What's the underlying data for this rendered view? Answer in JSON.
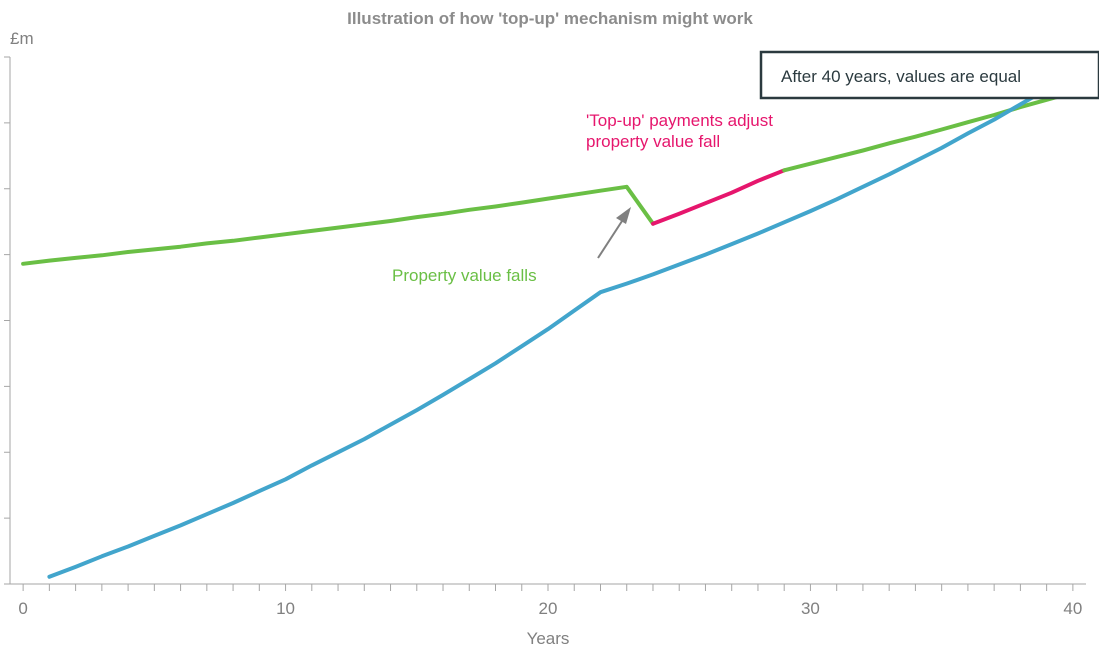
{
  "chart_data": {
    "type": "line",
    "title": "Illustration of how 'top-up' mechanism might work",
    "y_unit_label": "£m",
    "xlabel": "Years",
    "ylabel": "",
    "xlim": [
      -0.5,
      40.5
    ],
    "ylim": [
      0,
      8
    ],
    "x_tick_labels": [
      "0",
      "10",
      "20",
      "30",
      "40"
    ],
    "x_tick_values": [
      0,
      10,
      20,
      30,
      40
    ],
    "grid": false,
    "series": [
      {
        "color": "#6abf45",
        "points": [
          [
            0,
            4.86
          ],
          [
            1,
            4.91
          ],
          [
            2,
            4.95
          ],
          [
            3,
            4.99
          ],
          [
            4,
            5.04
          ],
          [
            5,
            5.08
          ],
          [
            6,
            5.12
          ],
          [
            7,
            5.17
          ],
          [
            8,
            5.21
          ],
          [
            9,
            5.26
          ],
          [
            10,
            5.31
          ],
          [
            11,
            5.36
          ],
          [
            12,
            5.41
          ],
          [
            13,
            5.46
          ],
          [
            14,
            5.51
          ],
          [
            15,
            5.57
          ],
          [
            16,
            5.62
          ],
          [
            17,
            5.68
          ],
          [
            18,
            5.73
          ],
          [
            19,
            5.79
          ],
          [
            20,
            5.85
          ],
          [
            21,
            5.91
          ],
          [
            22,
            5.97
          ],
          [
            23,
            6.03
          ],
          [
            24,
            5.47
          ]
        ]
      },
      {
        "color": "#e6166d",
        "points": [
          [
            24,
            5.47
          ],
          [
            25,
            5.62
          ],
          [
            26,
            5.78
          ],
          [
            27,
            5.94
          ],
          [
            28,
            6.12
          ],
          [
            29,
            6.28
          ]
        ]
      },
      {
        "color": "#6abf45",
        "points": [
          [
            29,
            6.28
          ],
          [
            30,
            6.38
          ],
          [
            31,
            6.48
          ],
          [
            32,
            6.58
          ],
          [
            33,
            6.69
          ],
          [
            34,
            6.79
          ],
          [
            35,
            6.9
          ],
          [
            36,
            7.01
          ],
          [
            37,
            7.12
          ],
          [
            38,
            7.24
          ],
          [
            39,
            7.35
          ],
          [
            40,
            7.46
          ]
        ]
      },
      {
        "color": "#42a5cc",
        "points": [
          [
            1,
            0.11
          ],
          [
            2,
            0.26
          ],
          [
            3,
            0.42
          ],
          [
            4,
            0.57
          ],
          [
            5,
            0.73
          ],
          [
            6,
            0.89
          ],
          [
            7,
            1.06
          ],
          [
            8,
            1.23
          ],
          [
            9,
            1.41
          ],
          [
            10,
            1.59
          ],
          [
            11,
            1.8
          ],
          [
            12,
            2.0
          ],
          [
            13,
            2.2
          ],
          [
            14,
            2.42
          ],
          [
            15,
            2.64
          ],
          [
            16,
            2.87
          ],
          [
            17,
            3.11
          ],
          [
            18,
            3.35
          ],
          [
            19,
            3.61
          ],
          [
            20,
            3.87
          ],
          [
            21,
            4.15
          ],
          [
            22,
            4.43
          ],
          [
            23,
            4.56
          ],
          [
            24,
            4.7
          ],
          [
            25,
            4.85
          ],
          [
            26,
            5.0
          ],
          [
            27,
            5.16
          ],
          [
            28,
            5.32
          ],
          [
            29,
            5.49
          ],
          [
            30,
            5.66
          ],
          [
            31,
            5.84
          ],
          [
            32,
            6.03
          ],
          [
            33,
            6.22
          ],
          [
            34,
            6.42
          ],
          [
            35,
            6.62
          ],
          [
            36,
            6.84
          ],
          [
            37,
            7.05
          ],
          [
            38,
            7.28
          ],
          [
            39,
            7.51
          ],
          [
            40,
            7.44
          ]
        ]
      }
    ],
    "annotations": {
      "property_falls": {
        "text": "Property value falls",
        "color": "#6abf45"
      },
      "topup_line1": {
        "text": "'Top-up' payments adjust",
        "color": "#e6166d"
      },
      "topup_line2": {
        "text": "property value fall",
        "color": "#e6166d"
      },
      "equal_box": {
        "text": "After 40 years, values are equal",
        "border_color": "#2b3a3f"
      },
      "arrow_color": "#808080"
    }
  }
}
